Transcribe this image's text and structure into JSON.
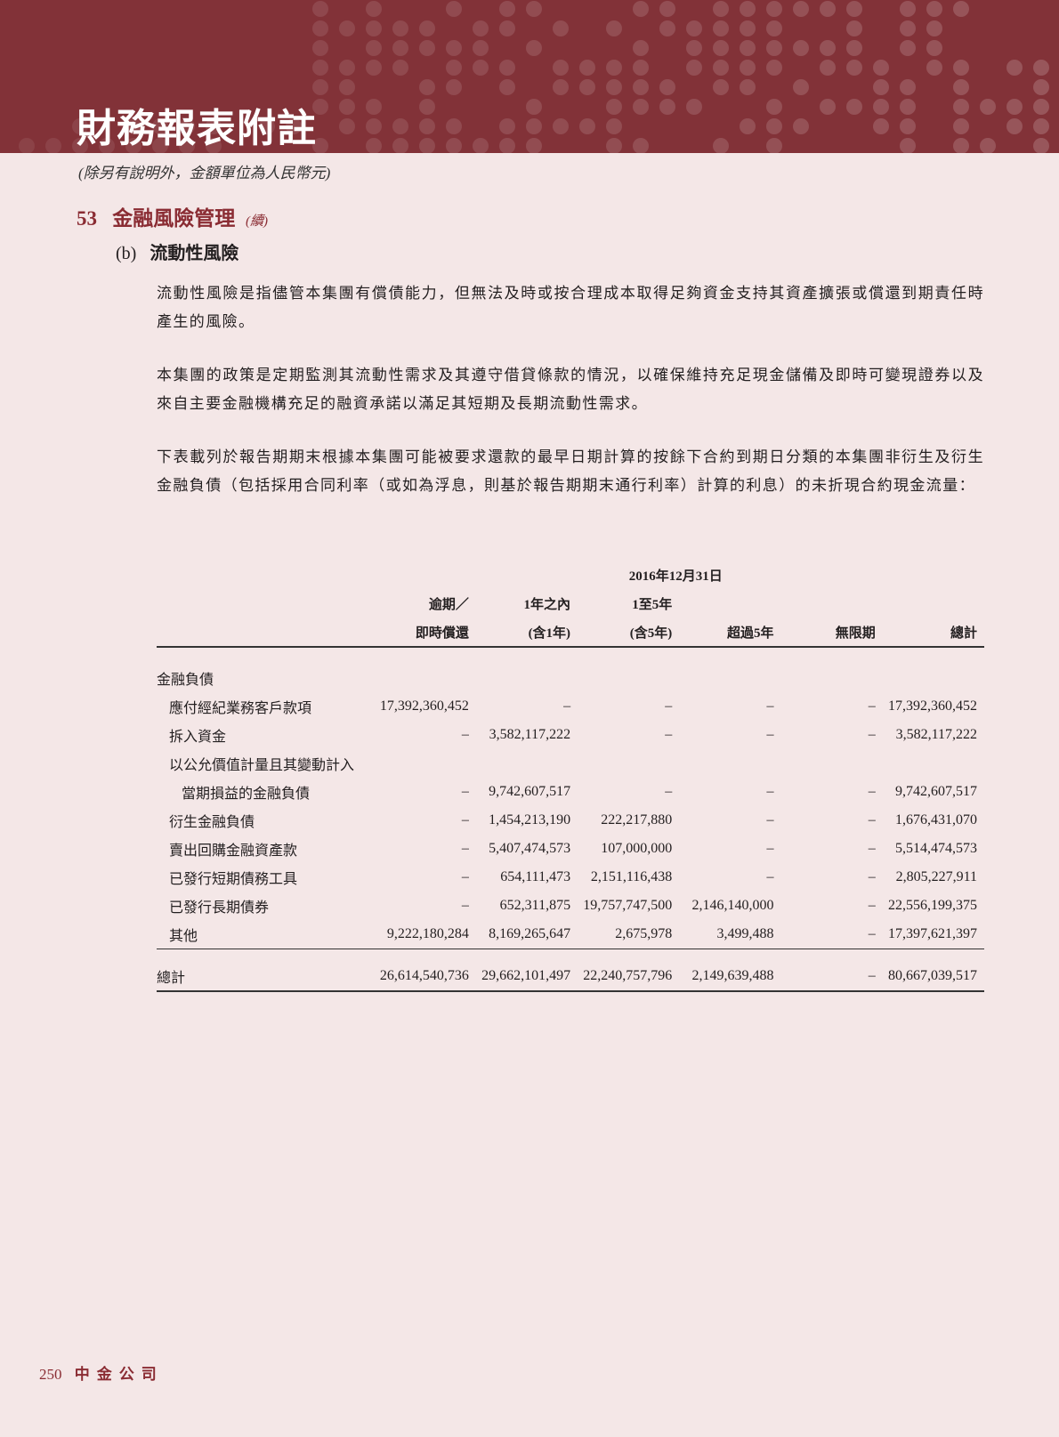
{
  "header": {
    "title": "財務報表附註",
    "subtitle": "(除另有說明外，金額單位為人民幣元)",
    "accent": "#823238"
  },
  "section": {
    "number": "53",
    "title": "金融風險管理",
    "continued": "(續)"
  },
  "subsection": {
    "label": "(b)",
    "title": "流動性風險"
  },
  "paragraphs": [
    "流動性風險是指儘管本集團有償債能力，但無法及時或按合理成本取得足夠資金支持其資產擴張或償還到期責任時產生的風險。",
    "本集團的政策是定期監測其流動性需求及其遵守借貸條款的情況，以確保維持充足現金儲備及即時可變現證券以及來自主要金融機構充足的融資承諾以滿足其短期及長期流動性需求。",
    "下表載列於報告期期末根據本集團可能被要求還款的最早日期計算的按餘下合約到期日分類的本集團非衍生及衍生金融負債（包括採用合同利率（或如為浮息，則基於報告期期末通行利率）計算的利息）的未折現合約現金流量："
  ],
  "table": {
    "date_header": "2016年12月31日",
    "columns": [
      {
        "line1": "逾期／",
        "line2": "即時償還"
      },
      {
        "line1": "1年之內",
        "line2": "(含1年)"
      },
      {
        "line1": "1至5年",
        "line2": "(含5年)"
      },
      {
        "line1": "",
        "line2": "超過5年"
      },
      {
        "line1": "",
        "line2": "無限期"
      },
      {
        "line1": "",
        "line2": "總計"
      }
    ],
    "group_label": "金融負債",
    "rows": [
      {
        "label": "應付經紀業務客戶款項",
        "values": [
          "17,392,360,452",
          "–",
          "–",
          "–",
          "–",
          "17,392,360,452"
        ]
      },
      {
        "label": "拆入資金",
        "values": [
          "–",
          "3,582,117,222",
          "–",
          "–",
          "–",
          "3,582,117,222"
        ]
      },
      {
        "label": "以公允價值計量且其變動計入",
        "values": [
          "",
          "",
          "",
          "",
          "",
          ""
        ]
      },
      {
        "label": "當期損益的金融負債",
        "values": [
          "–",
          "9,742,607,517",
          "–",
          "–",
          "–",
          "9,742,607,517"
        ]
      },
      {
        "label": "衍生金融負債",
        "values": [
          "–",
          "1,454,213,190",
          "222,217,880",
          "–",
          "–",
          "1,676,431,070"
        ]
      },
      {
        "label": "賣出回購金融資產款",
        "values": [
          "–",
          "5,407,474,573",
          "107,000,000",
          "–",
          "–",
          "5,514,474,573"
        ]
      },
      {
        "label": "已發行短期債務工具",
        "values": [
          "–",
          "654,111,473",
          "2,151,116,438",
          "–",
          "–",
          "2,805,227,911"
        ]
      },
      {
        "label": "已發行長期債券",
        "values": [
          "–",
          "652,311,875",
          "19,757,747,500",
          "2,146,140,000",
          "–",
          "22,556,199,375"
        ]
      },
      {
        "label": "其他",
        "values": [
          "9,222,180,284",
          "8,169,265,647",
          "2,675,978",
          "3,499,488",
          "–",
          "17,397,621,397"
        ]
      }
    ],
    "total": {
      "label": "總計",
      "values": [
        "26,614,540,736",
        "29,662,101,497",
        "22,240,757,796",
        "2,149,639,488",
        "–",
        "80,667,039,517"
      ]
    }
  },
  "footer": {
    "page": "250",
    "company": "中金公司"
  }
}
